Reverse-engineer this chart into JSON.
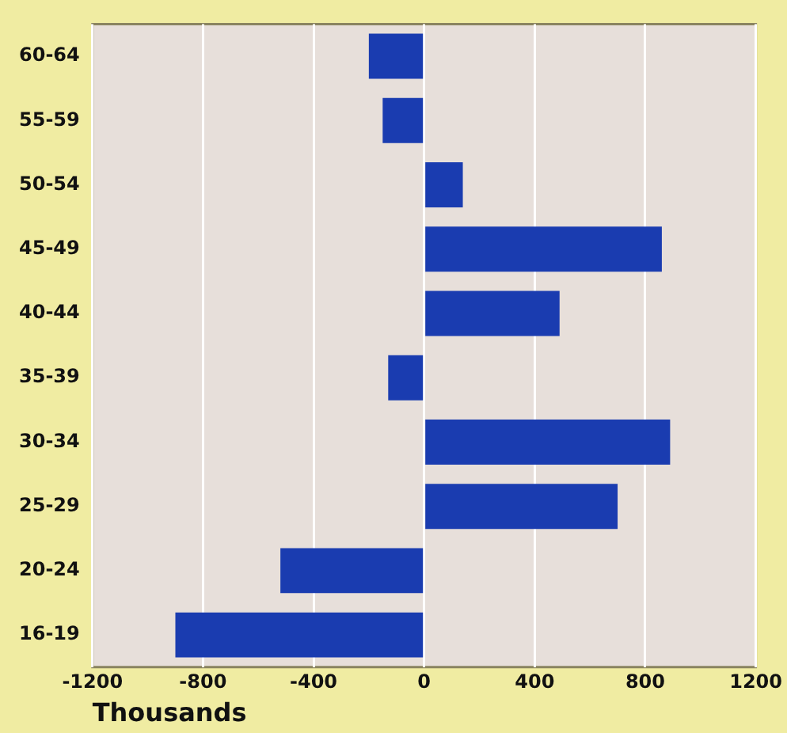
{
  "chart_data": {
    "type": "bar",
    "orientation": "horizontal",
    "xlabel": "Thousands",
    "categories": [
      "60-64",
      "55-59",
      "50-54",
      "45-49",
      "40-44",
      "35-39",
      "30-34",
      "25-29",
      "20-24",
      "16-19"
    ],
    "values": [
      -200,
      -150,
      140,
      860,
      490,
      -130,
      890,
      700,
      -520,
      -900
    ],
    "color": "#1a3cb0",
    "xlim": [
      -1200,
      1200
    ],
    "xticks": [
      -1200,
      -800,
      -400,
      0,
      400,
      800,
      1200
    ],
    "grid": "x",
    "legend": false
  }
}
